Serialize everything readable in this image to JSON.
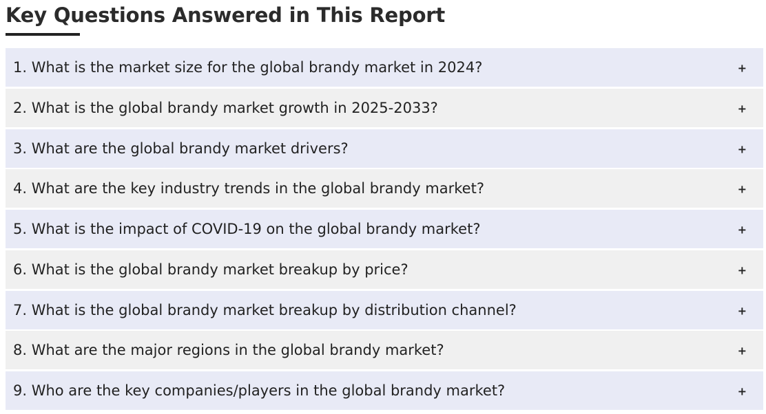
{
  "heading": "Key Questions Answered in This Report",
  "toggle_symbol": "+",
  "colors": {
    "row_odd": "#e8eaf6",
    "row_even": "#f0f0f0",
    "text": "#222222"
  },
  "faq": [
    {
      "question": "1. What is the market size for the global brandy market in 2024?"
    },
    {
      "question": "2. What is the global brandy market growth in 2025-2033?"
    },
    {
      "question": "3. What are the global brandy market drivers?"
    },
    {
      "question": "4. What are the key industry trends in the global brandy market?"
    },
    {
      "question": "5. What is the impact of COVID-19 on the global brandy market?"
    },
    {
      "question": "6. What is the global brandy market breakup by price?"
    },
    {
      "question": "7. What is the global brandy market breakup by distribution channel?"
    },
    {
      "question": "8. What are the major regions in the global brandy market?"
    },
    {
      "question": "9. Who are the key companies/players in the global brandy market?"
    }
  ]
}
